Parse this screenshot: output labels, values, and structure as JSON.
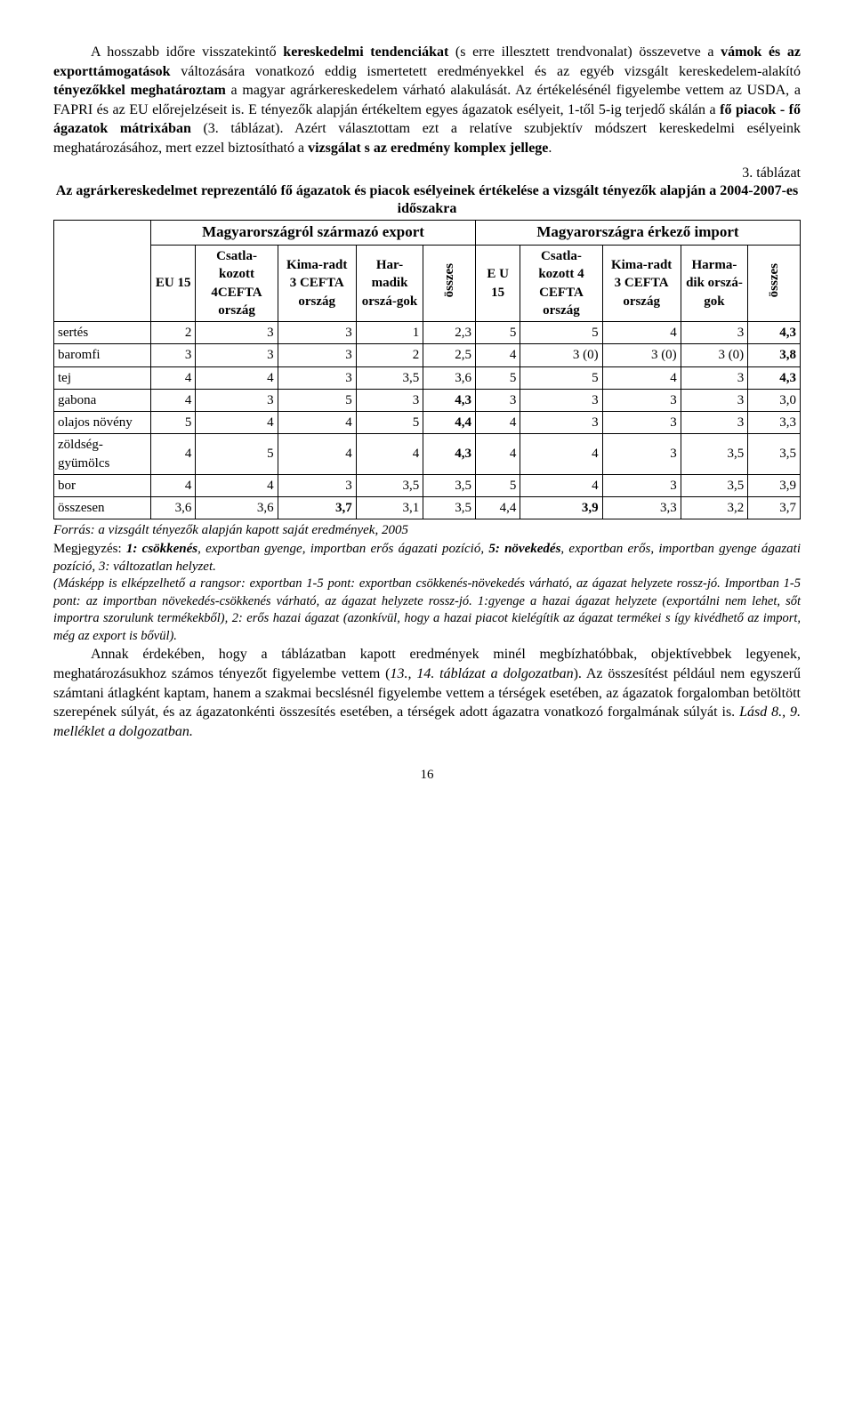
{
  "paragraph1_html": "A hosszabb időre visszatekintő <b>kereskedelmi tendenciákat</b> (s erre illesztett trendvonalat) összevetve a <b>vámok és az exporttámogatások</b> változására vonatkozó eddig ismertetett eredményekkel és az egyéb vizsgált kereskedelem-alakító <b>tényezőkkel meghatároztam</b> a magyar agrárkereskedelem várható alakulását. Az értékelésénél figyelembe vettem az USDA, a FAPRI és az EU előrejelzéseit is. E tényezők alapján értékeltem egyes ágazatok esélyeit, 1-től 5-ig terjedő skálán a <b>fő piacok - fő ágazatok mátrixában</b> (3. táblázat). Azért választottam ezt a relatíve szubjektív módszert kereskedelmi esélyeink meghatározásához, mert ezzel biztosítható a <b>vizsgálat s az eredmény komplex jellege</b>.",
  "table_caption": "3. táblázat",
  "table_title_html": "Az agrárkereskedelmet reprezentáló fő ágazatok és piacok esélyeinek értékelése a vizsgált tényezők alapján a 2004-2007-es időszakra",
  "head_export": "Magyarországról származó export",
  "head_import": "Magyarországra érkező import",
  "col_eu15_a": "EU 15",
  "col_csat4_a": "Csatla-kozott 4CEFTA ország",
  "col_kima3_a": "Kima-radt 3 CEFTA ország",
  "col_harm_a": "Har-madik orszá-gok",
  "col_ossz": "összes",
  "col_eu15_b": "E U 15",
  "col_csat4_b": "Csatla-kozott 4 CEFTA ország",
  "col_kima3_b": "Kima-radt 3 CEFTA ország",
  "col_harm_b": "Harma-dik orszá-gok",
  "rows": [
    {
      "label": "sertés",
      "c": [
        "2",
        "3",
        "3",
        "1",
        "2,3",
        "5",
        "5",
        "4",
        "3",
        "<b>4,3</b>"
      ]
    },
    {
      "label": "baromfi",
      "c": [
        "3",
        "3",
        "3",
        "2",
        "2,5",
        "4",
        "3 (0)",
        "3 (0)",
        "3 (0)",
        "<b>3,8</b>"
      ]
    },
    {
      "label": "tej",
      "c": [
        "4",
        "4",
        "3",
        "3,5",
        "3,6",
        "5",
        "5",
        "4",
        "3",
        "<b>4,3</b>"
      ]
    },
    {
      "label": "gabona",
      "c": [
        "4",
        "3",
        "5",
        "3",
        "<b>4,3</b>",
        "3",
        "3",
        "3",
        "3",
        "3,0"
      ]
    },
    {
      "label": "olajos növény",
      "c": [
        "5",
        "4",
        "4",
        "5",
        "<b>4,4</b>",
        "4",
        "3",
        "3",
        "3",
        "3,3"
      ]
    },
    {
      "label": "zöldség-gyümölcs",
      "c": [
        "4",
        "5",
        "4",
        "4",
        "<b>4,3</b>",
        "4",
        "4",
        "3",
        "3,5",
        "3,5"
      ]
    },
    {
      "label": "bor",
      "c": [
        "4",
        "4",
        "3",
        "3,5",
        "3,5",
        "5",
        "4",
        "3",
        "3,5",
        "3,9"
      ]
    },
    {
      "label": "összesen",
      "c": [
        "3,6",
        "3,6",
        "<b>3,7</b>",
        "3,1",
        "3,5",
        "4,4",
        "<b>3,9</b>",
        "3,3",
        "3,2",
        "3,7"
      ]
    }
  ],
  "source": "Forrás: a vizsgált tényezők alapján kapott saját eredmények, 2005",
  "note1_html": "Megjegyzés: <b><i>1: csökkenés</i></b><i>, exportban gyenge, importban erős ágazati pozíció, </i><b><i>5: növekedés</i></b><i>, exportban erős, importban gyenge ágazati pozíció, 3: változatlan helyzet.</i>",
  "note2_html": "(Másképp is elképzelhető a rangsor: exportban 1-5 pont: exportban csökkenés-növekedés várható, az ágazat helyzete rossz-jó. Importban 1-5 pont: az importban növekedés-csökkenés várható, az ágazat helyzete rossz-jó. 1:gyenge a hazai ágazat helyzete (exportálni nem lehet, sőt importra szorulunk termékekből), 2: erős hazai ágazat (azonkívül, hogy a hazai piacot kielégítik az ágazat termékei s így kivédhető az import, még az export is bővül).",
  "paragraph2_html": "Annak érdekében, hogy a táblázatban kapott eredmények minél megbízhatóbbak, objektívebbek legyenek, meghatározásukhoz számos tényezőt figyelembe vettem (<i>13., 14. táblázat a dolgozatban</i>). Az összesítést például nem egyszerű számtani átlagként kaptam, hanem a szakmai becslésnél figyelembe vettem a térségek esetében, az ágazatok forgalomban betöltött szerepének súlyát, és az ágazatonkénti összesítés esetében, a térségek adott ágazatra vonatkozó forgalmának súlyát is. <i>Lásd 8., 9. melléklet a dolgozatban.</i>",
  "page_number": "16"
}
